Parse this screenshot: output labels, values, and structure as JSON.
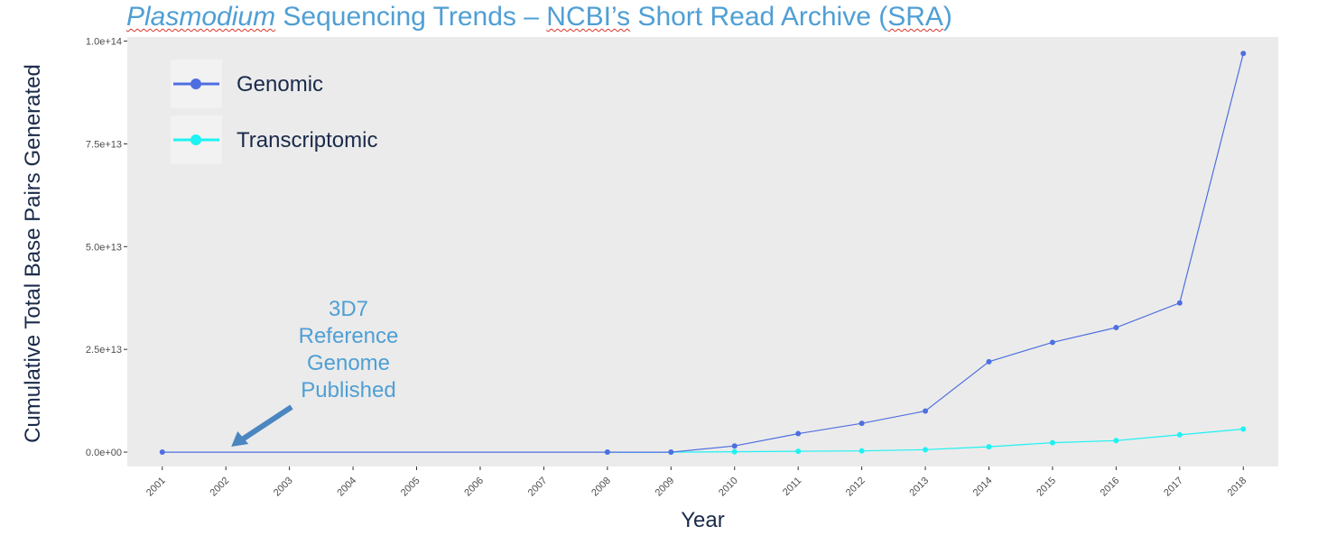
{
  "title": {
    "part1": "Plasmodium",
    "part2": " Sequencing Trends – ",
    "part3": "NCBI’s",
    "part4": " Short Read Archive (",
    "part5": "SRA",
    "part6": ")"
  },
  "colors": {
    "genomic": "#4f6fe0",
    "transcriptomic": "#1ef2f2",
    "panel": "#ebebeb",
    "title": "#4f9fd4"
  },
  "chart_data": {
    "type": "line",
    "xlabel": "Year",
    "ylabel": "Cumulative Total Base Pairs Generated",
    "x": [
      2001,
      2002,
      2003,
      2004,
      2005,
      2006,
      2007,
      2008,
      2009,
      2010,
      2011,
      2012,
      2013,
      2014,
      2015,
      2016,
      2017,
      2018
    ],
    "x_tick_labels": [
      "2001",
      "2002",
      "2003",
      "2004",
      "2005",
      "2006",
      "2007",
      "2008",
      "2009",
      "2010",
      "2011",
      "2012",
      "2013",
      "2014",
      "2015",
      "2016",
      "2017",
      "2018"
    ],
    "ylim": [
      -3500000000000.0,
      101000000000000.0
    ],
    "y_ticks": [
      0,
      25000000000000.0,
      50000000000000.0,
      75000000000000.0,
      100000000000000.0
    ],
    "y_tick_labels": [
      "0.0e+00",
      "2.5e+13",
      "5.0e+13",
      "7.5e+13",
      "1.0e+14"
    ],
    "series": [
      {
        "name": "Genomic",
        "color": "#4f6fe0",
        "points": [
          [
            2001,
            0
          ],
          [
            2008,
            0
          ],
          [
            2009,
            0
          ],
          [
            2010,
            1500000000000.0
          ],
          [
            2011,
            4500000000000.0
          ],
          [
            2012,
            7000000000000.0
          ],
          [
            2013,
            10000000000000.0
          ],
          [
            2014,
            22000000000000.0
          ],
          [
            2015,
            26700000000000.0
          ],
          [
            2016,
            30300000000000.0
          ],
          [
            2017,
            36300000000000.0
          ],
          [
            2018,
            97000000000000.0
          ]
        ]
      },
      {
        "name": "Transcriptomic",
        "color": "#1ef2f2",
        "points": [
          [
            2008,
            0
          ],
          [
            2009,
            0
          ],
          [
            2010,
            100000000000.0
          ],
          [
            2011,
            200000000000.0
          ],
          [
            2012,
            300000000000.0
          ],
          [
            2013,
            600000000000.0
          ],
          [
            2014,
            1300000000000.0
          ],
          [
            2015,
            2300000000000.0
          ],
          [
            2016,
            2800000000000.0
          ],
          [
            2017,
            4200000000000.0
          ],
          [
            2018,
            5600000000000.0
          ]
        ]
      }
    ],
    "legend_position": "top-left",
    "grid": false,
    "annotation": {
      "text_lines": [
        "3D7",
        "Reference",
        "Genome",
        "Published"
      ],
      "points_to_x": 2002,
      "points_to_y": 0
    }
  }
}
